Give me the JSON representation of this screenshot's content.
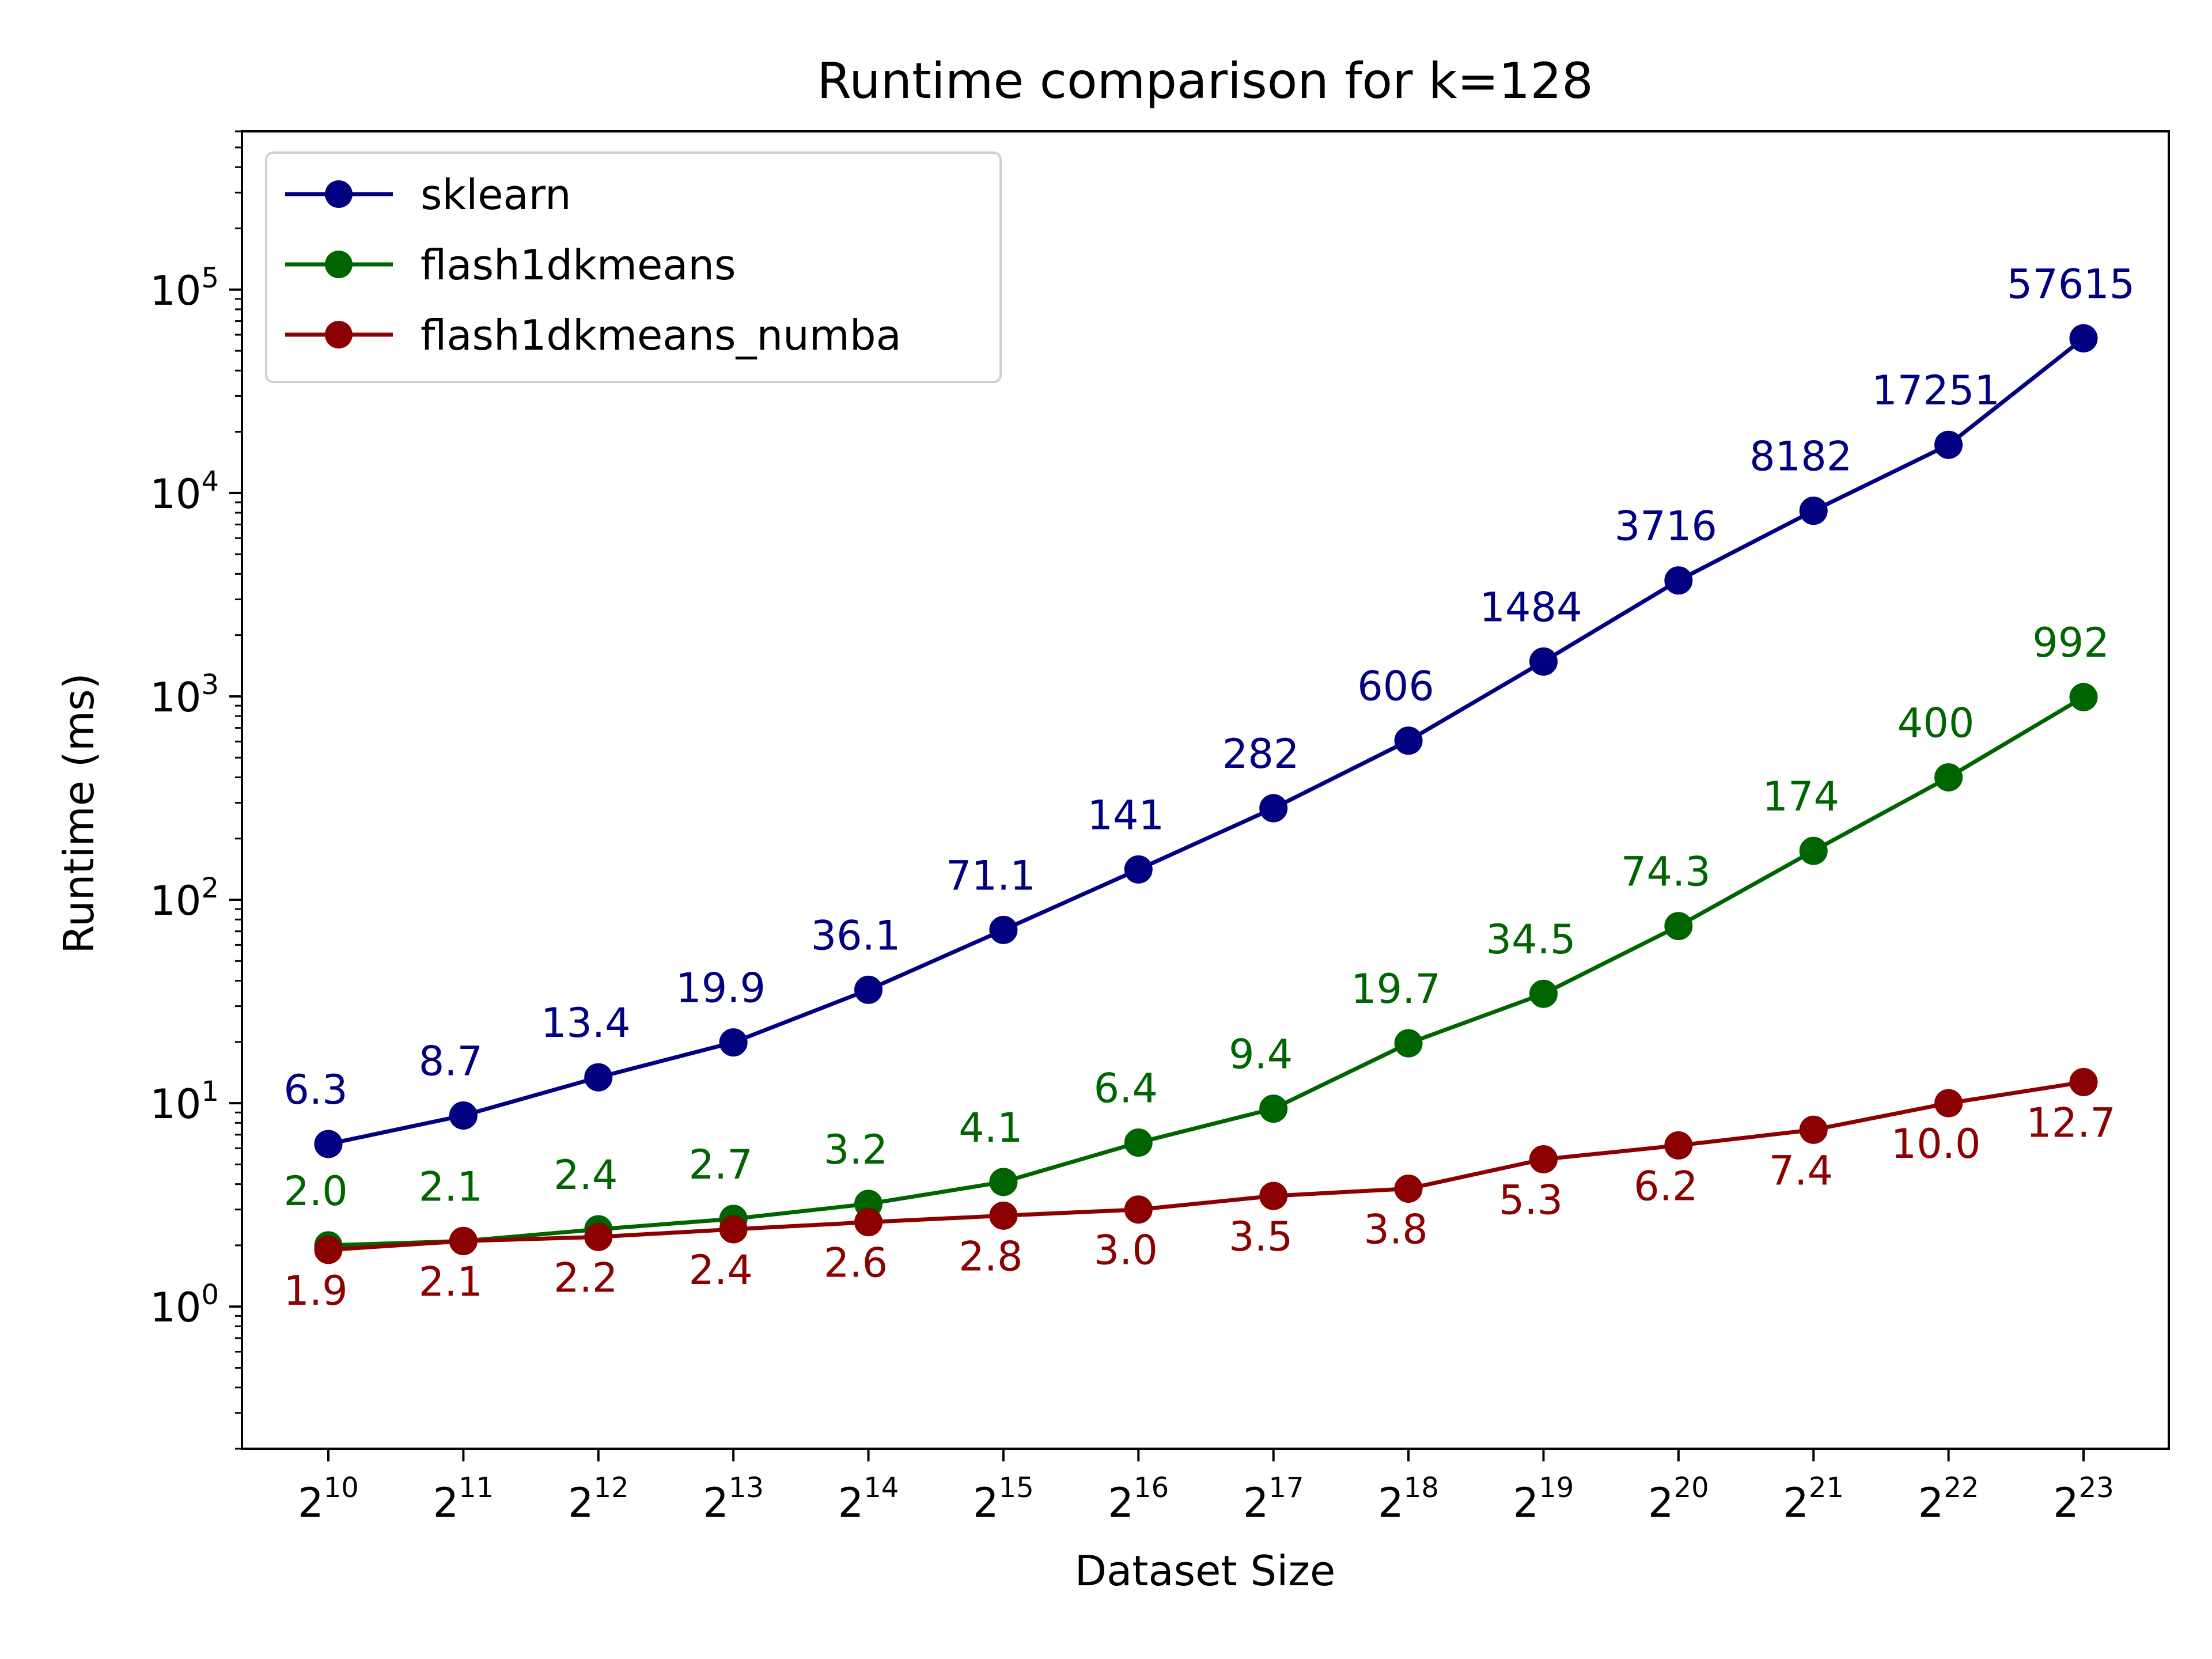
{
  "chart_data": {
    "type": "line",
    "title": "Runtime comparison for k=128",
    "xlabel": "Dataset Size",
    "ylabel": "Runtime (ms)",
    "x_scale": "log2",
    "y_scale": "log10",
    "x": [
      1024,
      2048,
      4096,
      8192,
      16384,
      32768,
      65536,
      131072,
      262144,
      524288,
      1048576,
      2097152,
      4194304,
      8388608
    ],
    "x_tick_labels": [
      {
        "base": "2",
        "exp": "10"
      },
      {
        "base": "2",
        "exp": "11"
      },
      {
        "base": "2",
        "exp": "12"
      },
      {
        "base": "2",
        "exp": "13"
      },
      {
        "base": "2",
        "exp": "14"
      },
      {
        "base": "2",
        "exp": "15"
      },
      {
        "base": "2",
        "exp": "16"
      },
      {
        "base": "2",
        "exp": "17"
      },
      {
        "base": "2",
        "exp": "18"
      },
      {
        "base": "2",
        "exp": "19"
      },
      {
        "base": "2",
        "exp": "20"
      },
      {
        "base": "2",
        "exp": "21"
      },
      {
        "base": "2",
        "exp": "22"
      },
      {
        "base": "2",
        "exp": "23"
      }
    ],
    "y_tick_labels": [
      {
        "base": "10",
        "exp": "0"
      },
      {
        "base": "10",
        "exp": "1"
      },
      {
        "base": "10",
        "exp": "2"
      },
      {
        "base": "10",
        "exp": "3"
      },
      {
        "base": "10",
        "exp": "4"
      },
      {
        "base": "10",
        "exp": "5"
      }
    ],
    "y_tick_values": [
      1,
      10,
      100,
      1000,
      10000,
      100000
    ],
    "ylim": [
      0.2,
      600000
    ],
    "grid": false,
    "legend_position": "top-left",
    "series": [
      {
        "name": "sklearn",
        "color": "#000080",
        "values": [
          6.3,
          8.7,
          13.4,
          19.9,
          36.1,
          71.1,
          141,
          282,
          606,
          1484,
          3716,
          8182,
          17251,
          57615
        ],
        "labels": [
          "6.3",
          "8.7",
          "13.4",
          "19.9",
          "36.1",
          "71.1",
          "141",
          "282",
          "606",
          "1484",
          "3716",
          "8182",
          "17251",
          "57615"
        ],
        "label_position": "above"
      },
      {
        "name": "flash1dkmeans",
        "color": "#006400",
        "values": [
          2.0,
          2.1,
          2.4,
          2.7,
          3.2,
          4.1,
          6.4,
          9.4,
          19.7,
          34.5,
          74.3,
          174,
          400,
          992
        ],
        "labels": [
          "2.0",
          "2.1",
          "2.4",
          "2.7",
          "3.2",
          "4.1",
          "6.4",
          "9.4",
          "19.7",
          "34.5",
          "74.3",
          "174",
          "400",
          "992"
        ],
        "label_position": "above"
      },
      {
        "name": "flash1dkmeans_numba",
        "color": "#8b0000",
        "values": [
          1.9,
          2.1,
          2.2,
          2.4,
          2.6,
          2.8,
          3.0,
          3.5,
          3.8,
          5.3,
          6.2,
          7.4,
          10.0,
          12.7
        ],
        "labels": [
          "1.9",
          "2.1",
          "2.2",
          "2.4",
          "2.6",
          "2.8",
          "3.0",
          "3.5",
          "3.8",
          "5.3",
          "6.2",
          "7.4",
          "10.0",
          "12.7"
        ],
        "label_position": "below"
      }
    ]
  }
}
